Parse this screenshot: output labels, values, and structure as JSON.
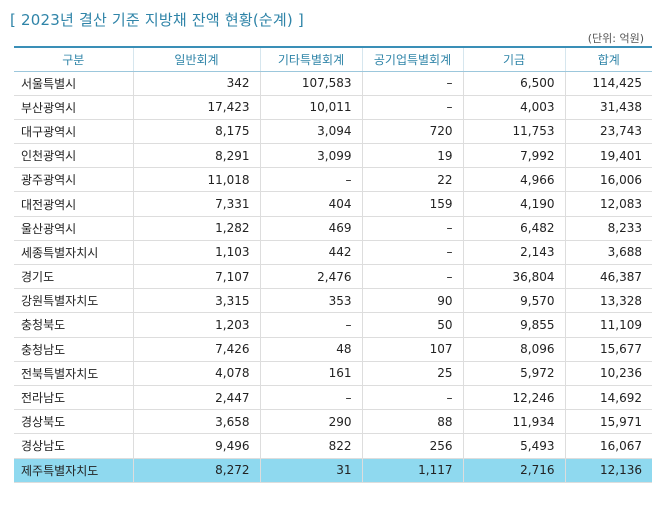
{
  "title": "[ 2023년 결산 기준 지방채 잔액 현황(순계) ]",
  "unit": "(단위: 억원)",
  "table": {
    "headers": [
      "구분",
      "일반회계",
      "기타특별회계",
      "공기업특별회계",
      "기금",
      "합계"
    ],
    "rows": [
      [
        "서울특별시",
        "342",
        "107,583",
        "–",
        "6,500",
        "114,425"
      ],
      [
        "부산광역시",
        "17,423",
        "10,011",
        "–",
        "4,003",
        "31,438"
      ],
      [
        "대구광역시",
        "8,175",
        "3,094",
        "720",
        "11,753",
        "23,743"
      ],
      [
        "인천광역시",
        "8,291",
        "3,099",
        "19",
        "7,992",
        "19,401"
      ],
      [
        "광주광역시",
        "11,018",
        "–",
        "22",
        "4,966",
        "16,006"
      ],
      [
        "대전광역시",
        "7,331",
        "404",
        "159",
        "4,190",
        "12,083"
      ],
      [
        "울산광역시",
        "1,282",
        "469",
        "–",
        "6,482",
        "8,233"
      ],
      [
        "세종특별자치시",
        "1,103",
        "442",
        "–",
        "2,143",
        "3,688"
      ],
      [
        "경기도",
        "7,107",
        "2,476",
        "–",
        "36,804",
        "46,387"
      ],
      [
        "강원특별자치도",
        "3,315",
        "353",
        "90",
        "9,570",
        "13,328"
      ],
      [
        "충청북도",
        "1,203",
        "–",
        "50",
        "9,855",
        "11,109"
      ],
      [
        "충청남도",
        "7,426",
        "48",
        "107",
        "8,096",
        "15,677"
      ],
      [
        "전북특별자치도",
        "4,078",
        "161",
        "25",
        "5,972",
        "10,236"
      ],
      [
        "전라남도",
        "2,447",
        "–",
        "–",
        "12,246",
        "14,692"
      ],
      [
        "경상북도",
        "3,658",
        "290",
        "88",
        "11,934",
        "15,971"
      ],
      [
        "경상남도",
        "9,496",
        "822",
        "256",
        "5,493",
        "16,067"
      ],
      [
        "제주특별자치도",
        "8,272",
        "31",
        "1,117",
        "2,716",
        "12,136"
      ]
    ],
    "highlight_row_label": "제주특별자치도"
  },
  "colors": {
    "accent": "#2f84a8",
    "highlight": "#8fd9ef"
  }
}
